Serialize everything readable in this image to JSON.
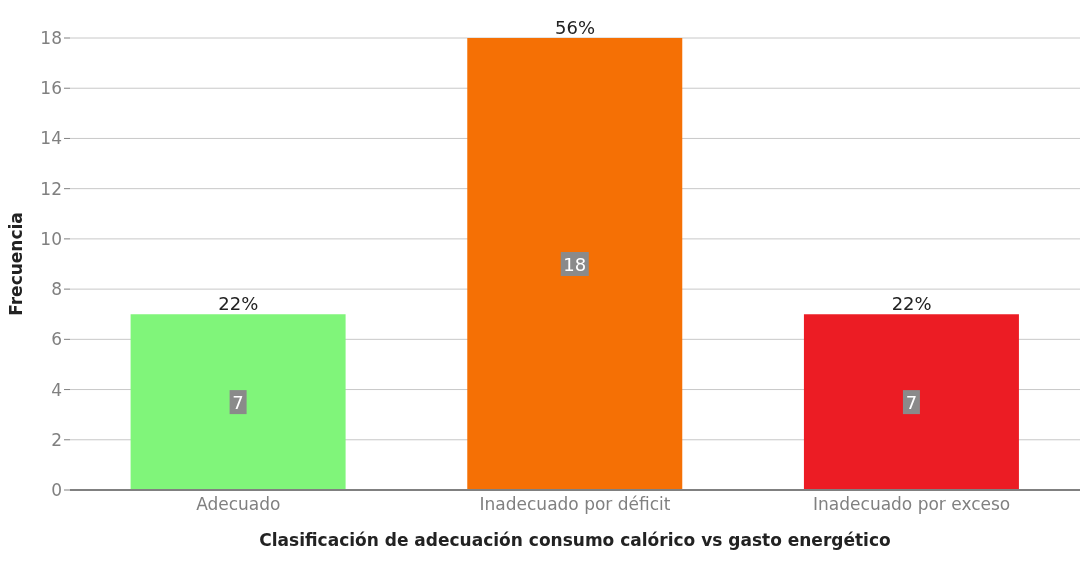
{
  "chart_data": {
    "type": "bar",
    "xlabel": "Clasificación de adecuación consumo calórico vs gasto energético",
    "ylabel": "Frecuencia",
    "categories": [
      "Adecuado",
      "Inadecuado por déficit",
      "Inadecuado por exceso"
    ],
    "values": [
      7,
      18,
      7
    ],
    "colors": [
      "#80f57a",
      "#f57005",
      "#ec1c24"
    ],
    "ylim": [
      0,
      18
    ],
    "yticks": [
      0,
      2,
      4,
      6,
      8,
      10,
      12,
      14,
      16,
      18
    ],
    "grid": "y",
    "data_labels": true,
    "annotations": [
      {
        "text": "22%",
        "x": "Adecuado",
        "y": 7
      },
      {
        "text": "56%",
        "x": "Inadecuado por déficit",
        "y": 18
      },
      {
        "text": "22%",
        "x": "Inadecuado por exceso",
        "y": 7
      }
    ]
  }
}
